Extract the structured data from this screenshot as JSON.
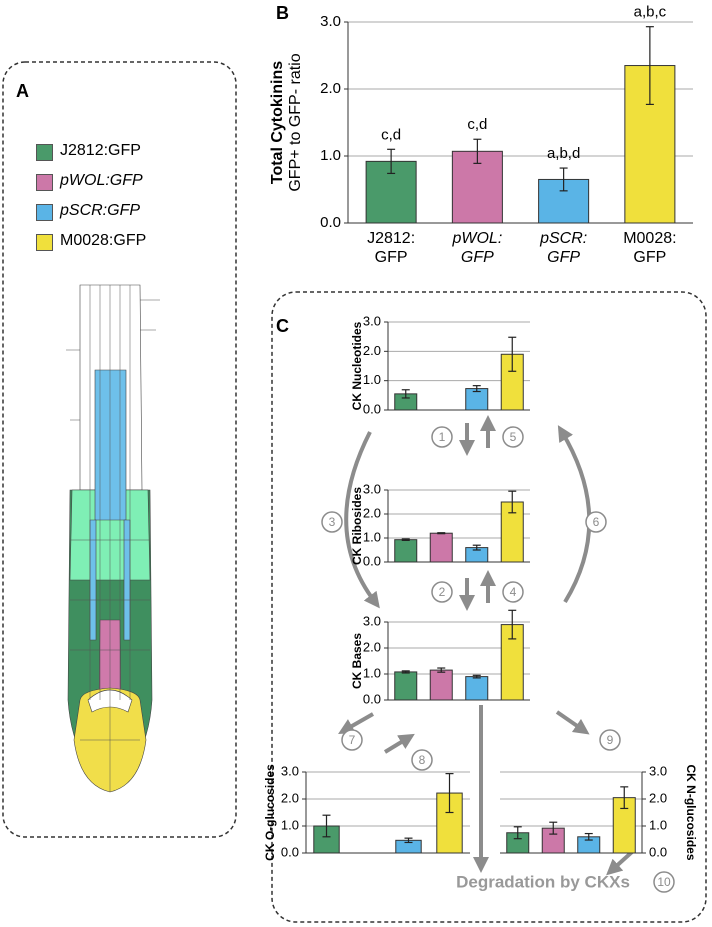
{
  "panels": {
    "a": "A",
    "b": "B",
    "c": "C"
  },
  "legend": [
    {
      "name": "J2812:GFP",
      "color": "#4a9a6a"
    },
    {
      "name": "pWOL:GFP",
      "color": "#cc78a8"
    },
    {
      "name": "pSCR:GFP",
      "color": "#5ab4e6"
    },
    {
      "name": "M0028:GFP",
      "color": "#f0e03c"
    }
  ],
  "steps": [
    "1",
    "2",
    "3",
    "4",
    "5",
    "6",
    "7",
    "8",
    "9",
    "10"
  ],
  "degradation": "Degradation by CKXs",
  "chart_data": [
    {
      "type": "bar",
      "ylabel": [
        "Total Cytokinins",
        "GFP+ to GFP- ratio"
      ],
      "categories": [
        "J2812:\nGFP",
        "pWOL:\nGFP",
        "pSCR:\nGFP",
        "M0028:\nGFP"
      ],
      "values": [
        0.92,
        1.07,
        0.65,
        2.35
      ],
      "errors": [
        0.18,
        0.18,
        0.17,
        0.58
      ],
      "annotations": [
        "c,d",
        "c,d",
        "a,b,d",
        "a,b,c"
      ],
      "colors": [
        "#4a9a6a",
        "#cc78a8",
        "#5ab4e6",
        "#f0e03c"
      ],
      "ylim": [
        0,
        3
      ],
      "yticks": [
        {
          "value": 0,
          "label": "0.0"
        },
        {
          "value": 1,
          "label": "1.0"
        },
        {
          "value": 2,
          "label": "2.0"
        },
        {
          "value": 3,
          "label": "3.0"
        }
      ],
      "grid": true
    },
    {
      "type": "bar",
      "ylabel": [
        "CK Nucleotides"
      ],
      "categories": [
        null,
        null,
        null,
        null
      ],
      "values": [
        0.55,
        null,
        0.73,
        1.9
      ],
      "errors": [
        0.14,
        null,
        0.1,
        0.58
      ],
      "colors": [
        "#4a9a6a",
        "#cc78a8",
        "#5ab4e6",
        "#f0e03c"
      ],
      "ylim": [
        0,
        3
      ],
      "yticks": [
        {
          "value": 0,
          "label": "0.0"
        },
        {
          "value": 1,
          "label": "1.0"
        },
        {
          "value": 2,
          "label": "2.0"
        },
        {
          "value": 3,
          "label": "3.0"
        }
      ],
      "grid": true
    },
    {
      "type": "bar",
      "ylabel": [
        "CK Ribosides"
      ],
      "categories": [
        null,
        null,
        null,
        null
      ],
      "values": [
        0.93,
        1.2,
        0.6,
        2.5
      ],
      "errors": [
        0.03,
        0.02,
        0.1,
        0.45
      ],
      "colors": [
        "#4a9a6a",
        "#cc78a8",
        "#5ab4e6",
        "#f0e03c"
      ],
      "ylim": [
        0,
        3
      ],
      "yticks": [
        {
          "value": 0,
          "label": "0.0"
        },
        {
          "value": 1,
          "label": "1.0"
        },
        {
          "value": 2,
          "label": "2.0"
        },
        {
          "value": 3,
          "label": "3.0"
        }
      ],
      "grid": true
    },
    {
      "type": "bar",
      "ylabel": [
        "CK Bases"
      ],
      "categories": [
        null,
        null,
        null,
        null
      ],
      "values": [
        1.08,
        1.15,
        0.9,
        2.9
      ],
      "errors": [
        0.04,
        0.08,
        0.05,
        0.55
      ],
      "colors": [
        "#4a9a6a",
        "#cc78a8",
        "#5ab4e6",
        "#f0e03c"
      ],
      "ylim": [
        0,
        3
      ],
      "yticks": [
        {
          "value": 0,
          "label": "0.0"
        },
        {
          "value": 1,
          "label": "1.0"
        },
        {
          "value": 2,
          "label": "2.0"
        },
        {
          "value": 3,
          "label": "3.0"
        }
      ],
      "grid": true
    },
    {
      "type": "bar",
      "ylabel": [
        "CK O-glucosides"
      ],
      "categories": [
        null,
        null,
        null,
        null
      ],
      "values": [
        1.0,
        null,
        0.47,
        2.22
      ],
      "errors": [
        0.4,
        null,
        0.08,
        0.72
      ],
      "colors": [
        "#4a9a6a",
        "#cc78a8",
        "#5ab4e6",
        "#f0e03c"
      ],
      "ylim": [
        0,
        3
      ],
      "yticks": [
        {
          "value": 0,
          "label": "0.0"
        },
        {
          "value": 1,
          "label": "1.0"
        },
        {
          "value": 2,
          "label": "2.0"
        },
        {
          "value": 3,
          "label": "3.0"
        }
      ],
      "grid": true
    },
    {
      "type": "bar",
      "ylabel": [
        "CK N-glucosides"
      ],
      "categories": [
        null,
        null,
        null,
        null
      ],
      "values": [
        0.75,
        0.92,
        0.6,
        2.05
      ],
      "errors": [
        0.22,
        0.22,
        0.12,
        0.4
      ],
      "colors": [
        "#4a9a6a",
        "#cc78a8",
        "#5ab4e6",
        "#f0e03c"
      ],
      "ylim": [
        0,
        3
      ],
      "yticks": [
        {
          "value": 0,
          "label": "0.0"
        },
        {
          "value": 1,
          "label": "1.0"
        },
        {
          "value": 2,
          "label": "2.0"
        },
        {
          "value": 3,
          "label": "3.0"
        }
      ],
      "grid": true
    }
  ]
}
